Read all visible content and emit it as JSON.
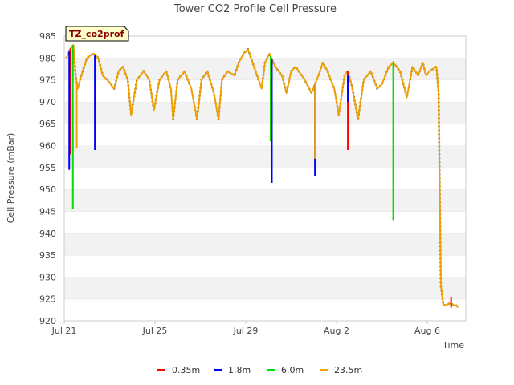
{
  "chart_data": {
    "type": "line",
    "title": "Tower CO2 Profile Cell Pressure",
    "xlabel": "Time",
    "ylabel": "Cell Pressure (mBar)",
    "site_tag": "TZ_co2prof",
    "x_unit": "days since Jul 21",
    "xlim": [
      0,
      17.7
    ],
    "ylim": [
      920,
      985
    ],
    "x_ticks": [
      {
        "label": "Jul 21",
        "value": 0
      },
      {
        "label": "Jul 25",
        "value": 4
      },
      {
        "label": "Jul 29",
        "value": 8
      },
      {
        "label": "Aug 2",
        "value": 12
      },
      {
        "label": "Aug 6",
        "value": 16
      }
    ],
    "y_ticks": [
      920,
      925,
      930,
      935,
      940,
      945,
      950,
      955,
      960,
      965,
      970,
      975,
      980,
      985
    ],
    "baseline_series": {
      "name": "23.5m",
      "x": [
        0.1,
        0.25,
        0.4,
        0.5,
        0.6,
        0.75,
        1.0,
        1.3,
        1.5,
        1.7,
        1.9,
        2.2,
        2.4,
        2.6,
        2.8,
        2.95,
        3.2,
        3.5,
        3.75,
        3.95,
        4.2,
        4.5,
        4.7,
        4.8,
        5.0,
        5.3,
        5.6,
        5.85,
        6.05,
        6.3,
        6.6,
        6.8,
        6.95,
        7.2,
        7.5,
        7.7,
        7.9,
        8.1,
        8.5,
        8.7,
        8.85,
        9.05,
        9.3,
        9.6,
        9.8,
        10.0,
        10.2,
        10.6,
        10.9,
        11.2,
        11.4,
        11.6,
        11.9,
        12.1,
        12.35,
        12.5,
        12.7,
        12.95,
        13.2,
        13.5,
        13.8,
        14.0,
        14.3,
        14.5,
        14.8,
        15.1,
        15.35,
        15.6,
        15.8,
        15.95,
        16.1,
        16.4,
        16.5,
        16.6,
        16.7,
        16.75,
        17.0,
        17.2,
        17.3,
        17.35
      ],
      "values": [
        980,
        982,
        983,
        976,
        973,
        976,
        980,
        981,
        980,
        976,
        975,
        973,
        977,
        978,
        975,
        967,
        975,
        977,
        975,
        968,
        975,
        977,
        973,
        966,
        975,
        977,
        973,
        966,
        975,
        977,
        972,
        966,
        975,
        977,
        976,
        979,
        981,
        982,
        976,
        973,
        979,
        981,
        978,
        976,
        972,
        977,
        978,
        975,
        972,
        976,
        979,
        977,
        973,
        967,
        976,
        977,
        973,
        966,
        975,
        977,
        973,
        974,
        978,
        979,
        977,
        971,
        978,
        976,
        979,
        976,
        977,
        978,
        972,
        928,
        924,
        923.5,
        924,
        923.5,
        923.5,
        923
      ],
      "color": "#f0a000"
    },
    "series": [
      {
        "name": "0.35m",
        "color": "#ff0000",
        "spikes": [
          {
            "x": 0.28,
            "low": 958
          },
          {
            "x": 12.5,
            "low": 959
          },
          {
            "x": 17.05,
            "low": 923,
            "high": 925.5
          }
        ]
      },
      {
        "name": "1.8m",
        "color": "#0000ff",
        "spikes": [
          {
            "x": 0.22,
            "low": 954.5
          },
          {
            "x": 1.35,
            "low": 959
          },
          {
            "x": 9.15,
            "low": 951.5
          },
          {
            "x": 11.05,
            "low": 953
          },
          {
            "x": 12.5,
            "low": 970,
            "high": 976
          }
        ]
      },
      {
        "name": "6.0m",
        "color": "#00dd00",
        "spikes": [
          {
            "x": 0.38,
            "low": 945.5
          },
          {
            "x": 9.1,
            "low": 961
          },
          {
            "x": 14.5,
            "low": 943
          }
        ]
      },
      {
        "name": "23.5m",
        "color": "#f0a000",
        "spikes": [
          {
            "x": 0.55,
            "low": 959.5
          },
          {
            "x": 11.05,
            "low": 957
          }
        ]
      }
    ],
    "grid": true,
    "legend_position": "bottom"
  }
}
